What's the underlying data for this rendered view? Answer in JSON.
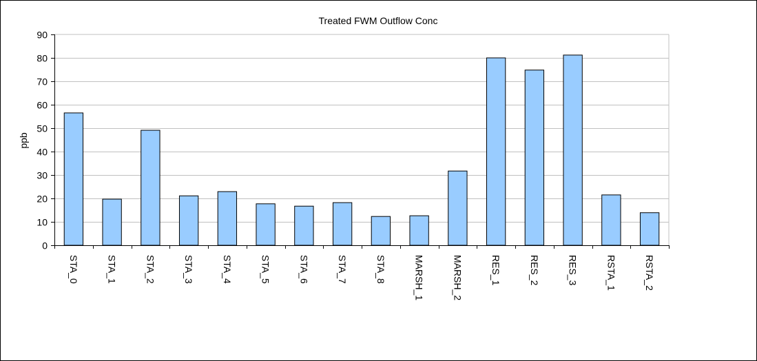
{
  "chart_data": {
    "type": "bar",
    "title": "Treated FWM Outflow Conc",
    "xlabel": "",
    "ylabel": "ppb",
    "ylim": [
      0,
      90
    ],
    "yticks": [
      0,
      10,
      20,
      30,
      40,
      50,
      60,
      70,
      80,
      90
    ],
    "grid": true,
    "bar_color": "#99ccff",
    "bar_stroke": "#000000",
    "grid_color": "#c0c0c0",
    "categories": [
      "STA_0",
      "STA_1",
      "STA_2",
      "STA_3",
      "STA_4",
      "STA_5",
      "STA_6",
      "STA_7",
      "STA_8",
      "MARSH_1",
      "MARSH_2",
      "RES_1",
      "RES_2",
      "RES_3",
      "RSTA_1",
      "RSTA_2"
    ],
    "values": [
      56.5,
      19.7,
      49.1,
      21.1,
      22.9,
      17.7,
      16.7,
      18.2,
      12.3,
      12.6,
      31.7,
      80.0,
      74.8,
      81.2,
      21.5,
      13.9
    ]
  }
}
